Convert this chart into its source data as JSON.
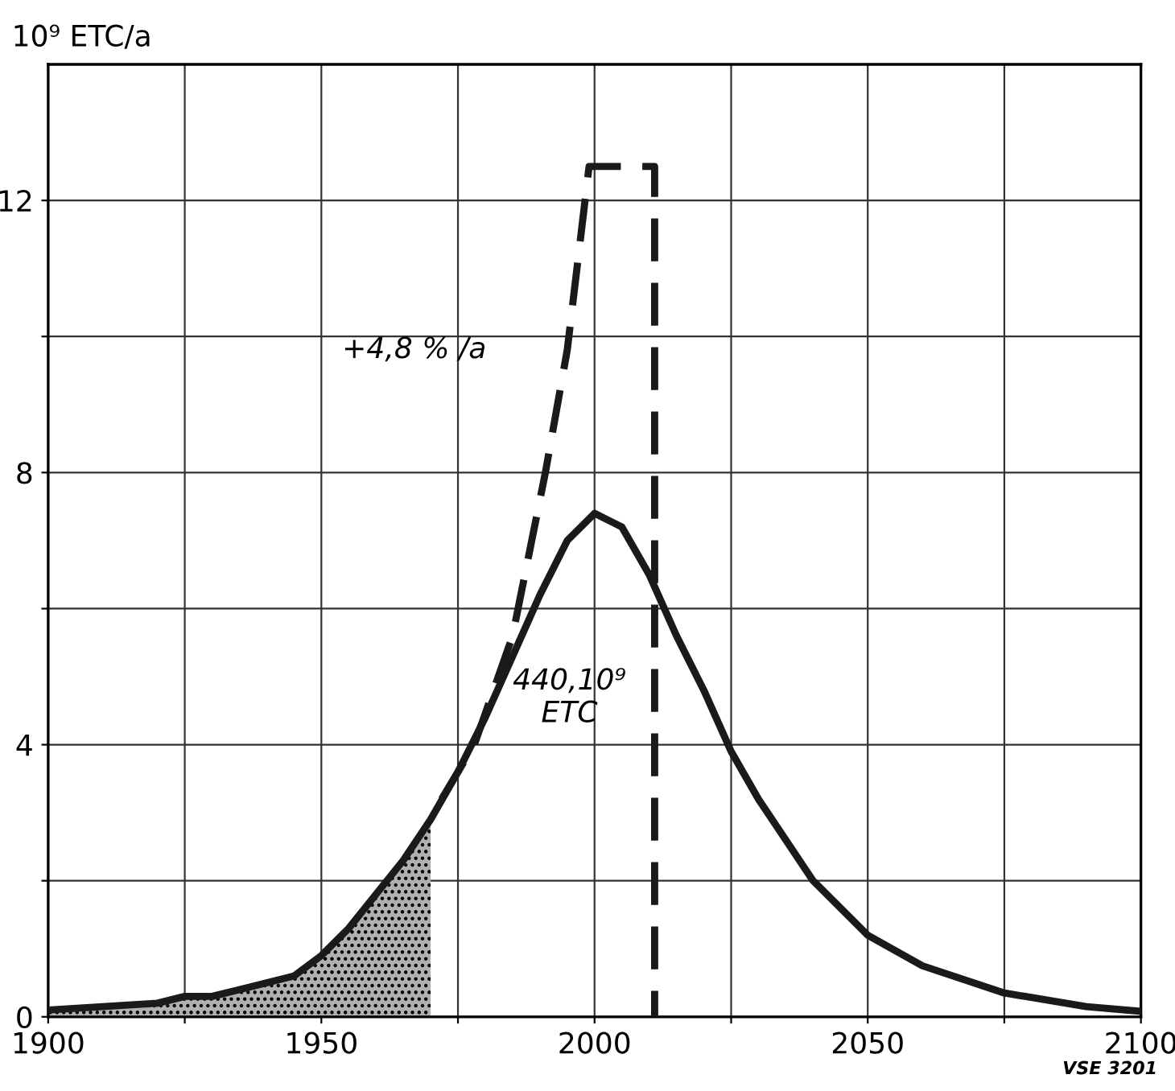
{
  "chart_data": {
    "type": "line",
    "ylabel": "10⁹ ETC/a",
    "xlim": [
      1900,
      2100
    ],
    "ylim": [
      0,
      14
    ],
    "xticks": [
      1900,
      {
        "value": 1925,
        "label": null
      },
      1950,
      {
        "value": 1975,
        "label": null
      },
      2000,
      {
        "value": 2025,
        "label": null
      },
      2050,
      {
        "value": 2075,
        "label": null
      },
      2100
    ],
    "yticks": [
      0,
      {
        "value": 2,
        "label": null
      },
      4,
      {
        "value": 6,
        "label": null
      },
      8,
      {
        "value": 10,
        "label": null
      },
      12
    ],
    "grid": true,
    "legend": false,
    "annotations": [
      "+4,8 % /a",
      "440,10⁹\nETC",
      "VSE 3201"
    ],
    "series": [
      {
        "type": "area",
        "color": "#b0b0b0",
        "x": [
          1900,
          1910,
          1920,
          1925,
          1930,
          1935,
          1940,
          1945,
          1950,
          1955,
          1960,
          1965,
          1970
        ],
        "values": [
          0.1,
          0.15,
          0.2,
          0.3,
          0.3,
          0.4,
          0.5,
          0.6,
          0.9,
          1.3,
          1.8,
          2.3,
          2.9
        ]
      },
      {
        "color": "#1a1a1a",
        "line_style": "solid",
        "x": [
          1900,
          1910,
          1920,
          1925,
          1930,
          1935,
          1940,
          1945,
          1950,
          1955,
          1960,
          1965,
          1970,
          1975,
          1980,
          1985,
          1990,
          1995,
          2000,
          2005,
          2010,
          2015,
          2020,
          2025,
          2030,
          2040,
          2050,
          2060,
          2075,
          2090,
          2100
        ],
        "values": [
          0.1,
          0.15,
          0.2,
          0.3,
          0.3,
          0.4,
          0.5,
          0.6,
          0.9,
          1.3,
          1.8,
          2.3,
          2.9,
          3.6,
          4.4,
          5.3,
          6.2,
          7.0,
          7.4,
          7.2,
          6.5,
          5.6,
          4.8,
          3.9,
          3.2,
          2.0,
          1.2,
          0.75,
          0.35,
          0.15,
          0.08
        ]
      },
      {
        "color": "#1a1a1a",
        "line_style": "dashed",
        "x": [
          1972,
          1978,
          1985,
          1991,
          1995,
          1999,
          2011,
          2011
        ],
        "values": [
          3.2,
          4.0,
          5.6,
          8.0,
          9.8,
          12.5,
          12.5,
          0
        ]
      }
    ]
  }
}
